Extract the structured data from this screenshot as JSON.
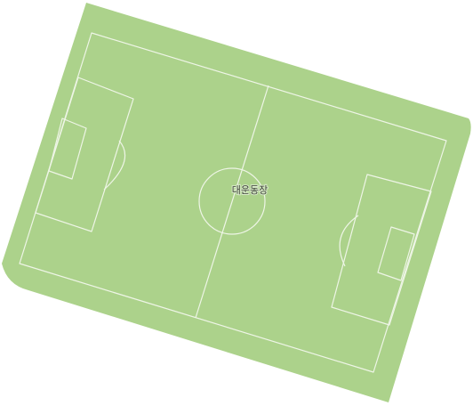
{
  "map": {
    "feature_type": "soccer-field",
    "place_label": "대운동장",
    "colors": {
      "background": "#ffffff",
      "field_fill": "#acd28b",
      "field_lines": "#eef5e6",
      "label_text": "#3a3f36"
    }
  }
}
